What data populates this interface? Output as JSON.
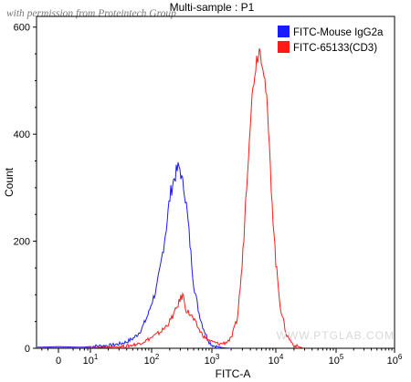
{
  "watermark_top": "with permission from Proteintech Group",
  "watermark_brand": "WWW.PTGLAB.COM",
  "chart_data": {
    "type": "histogram",
    "title": "Multi-sample : P1",
    "xlabel": "FITC-A",
    "ylabel": "Count",
    "x_scale": "biexponential",
    "x_ticks": [
      {
        "value": 0,
        "label": "0"
      },
      {
        "value": 10,
        "label": "10",
        "sup": "1"
      },
      {
        "value": 100,
        "label": "10",
        "sup": "2"
      },
      {
        "value": 1000,
        "label": "10",
        "sup": "3"
      },
      {
        "value": 10000,
        "label": "10",
        "sup": "4"
      },
      {
        "value": 100000,
        "label": "10",
        "sup": "5"
      },
      {
        "value": 1000000,
        "label": "10",
        "sup": "6"
      }
    ],
    "y_ticks": [
      0,
      200,
      400,
      600
    ],
    "ylim": [
      0,
      620
    ],
    "legend_position": "top-right",
    "series": [
      {
        "name": "FITC-Mouse IgG2a",
        "color": "#1a1aff",
        "points": [
          [
            -3,
            2
          ],
          [
            0,
            3
          ],
          [
            5,
            2
          ],
          [
            12,
            4
          ],
          [
            20,
            5
          ],
          [
            30,
            8
          ],
          [
            40,
            12
          ],
          [
            50,
            18
          ],
          [
            60,
            26
          ],
          [
            70,
            37
          ],
          [
            80,
            52
          ],
          [
            90,
            66
          ],
          [
            100,
            85
          ],
          [
            120,
            110
          ],
          [
            140,
            150
          ],
          [
            160,
            195
          ],
          [
            180,
            235
          ],
          [
            200,
            280
          ],
          [
            220,
            305
          ],
          [
            250,
            325
          ],
          [
            280,
            338
          ],
          [
            300,
            335
          ],
          [
            320,
            310
          ],
          [
            350,
            300
          ],
          [
            400,
            240
          ],
          [
            450,
            175
          ],
          [
            500,
            120
          ],
          [
            600,
            70
          ],
          [
            700,
            42
          ],
          [
            800,
            25
          ],
          [
            900,
            12
          ],
          [
            1000,
            6
          ],
          [
            1200,
            3
          ],
          [
            1500,
            1
          ],
          [
            2000,
            0
          ]
        ]
      },
      {
        "name": "FITC-65133(CD3)",
        "color": "#ff1a1a",
        "points": [
          [
            -3,
            1
          ],
          [
            5,
            1
          ],
          [
            20,
            2
          ],
          [
            40,
            4
          ],
          [
            60,
            8
          ],
          [
            80,
            14
          ],
          [
            100,
            20
          ],
          [
            130,
            28
          ],
          [
            160,
            36
          ],
          [
            200,
            50
          ],
          [
            250,
            70
          ],
          [
            300,
            92
          ],
          [
            330,
            100
          ],
          [
            380,
            70
          ],
          [
            450,
            62
          ],
          [
            550,
            45
          ],
          [
            650,
            30
          ],
          [
            800,
            18
          ],
          [
            1000,
            12
          ],
          [
            1300,
            8
          ],
          [
            1600,
            10
          ],
          [
            2000,
            18
          ],
          [
            2500,
            55
          ],
          [
            3000,
            160
          ],
          [
            3500,
            310
          ],
          [
            4000,
            430
          ],
          [
            4500,
            500
          ],
          [
            5000,
            540
          ],
          [
            5500,
            560
          ],
          [
            6000,
            545
          ],
          [
            6500,
            520
          ],
          [
            7000,
            480
          ],
          [
            7500,
            430
          ],
          [
            8000,
            360
          ],
          [
            9000,
            250
          ],
          [
            10000,
            160
          ],
          [
            12000,
            75
          ],
          [
            15000,
            25
          ],
          [
            20000,
            5
          ],
          [
            30000,
            0
          ]
        ]
      }
    ]
  }
}
